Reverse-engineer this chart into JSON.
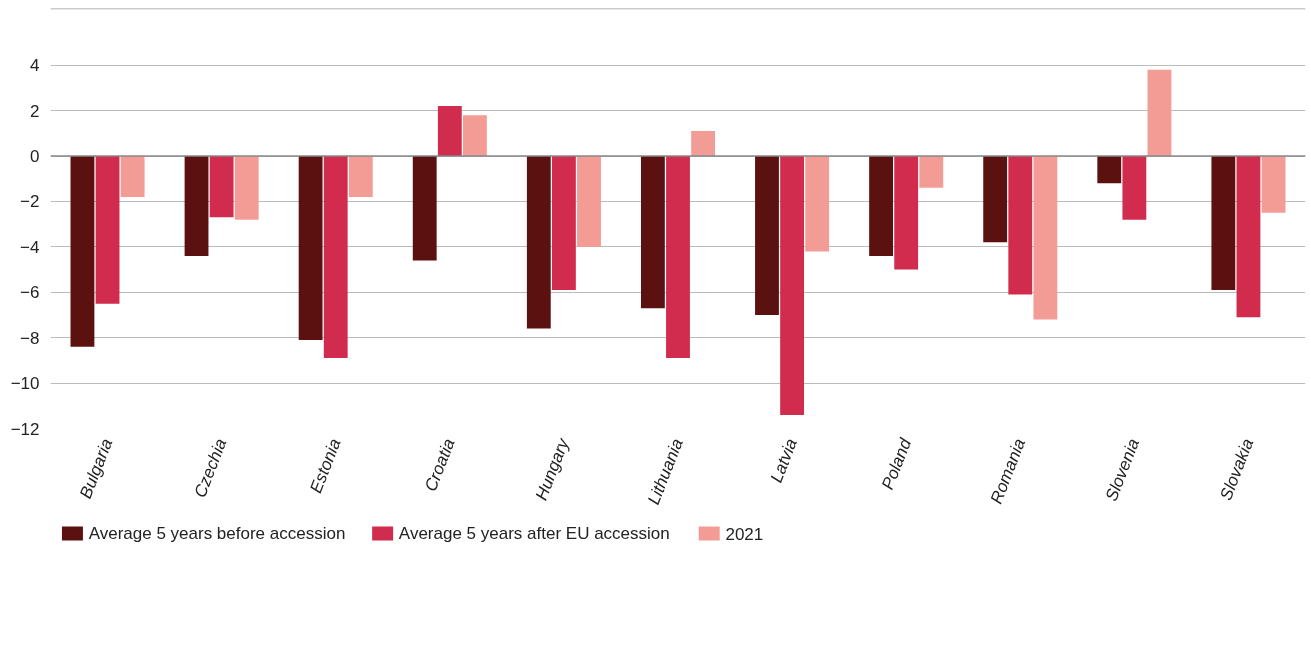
{
  "chart_data": {
    "type": "bar",
    "categories": [
      "Bulgaria",
      "Czechia",
      "Estonia",
      "Croatia",
      "Hungary",
      "Lithuania",
      "Latvia",
      "Poland",
      "Romania",
      "Slovenia",
      "Slovakia"
    ],
    "series": [
      {
        "name": "Average 5 years before accession",
        "color": "#5c1111",
        "values": [
          -8.4,
          -4.4,
          -8.1,
          -4.6,
          -7.6,
          -6.7,
          -7.0,
          -4.4,
          -3.8,
          -1.2,
          -5.9
        ]
      },
      {
        "name": "Average 5 years after EU accession",
        "color": "#d12c4e",
        "values": [
          -6.5,
          -2.7,
          -8.9,
          2.2,
          -5.9,
          -8.9,
          -11.4,
          -5.0,
          -6.1,
          -2.8,
          -7.1
        ]
      },
      {
        "name": "2021",
        "color": "#f39c96",
        "values": [
          -1.8,
          -2.8,
          -1.8,
          1.8,
          -4.0,
          1.1,
          -4.2,
          -1.4,
          -7.2,
          3.8,
          -2.5
        ]
      }
    ],
    "ylim": [
      -12,
      6.5
    ],
    "yticks": [
      -12,
      -10,
      -8,
      -6,
      -4,
      -2,
      0,
      2,
      4
    ],
    "grid": "y",
    "legend": "bottom left"
  }
}
